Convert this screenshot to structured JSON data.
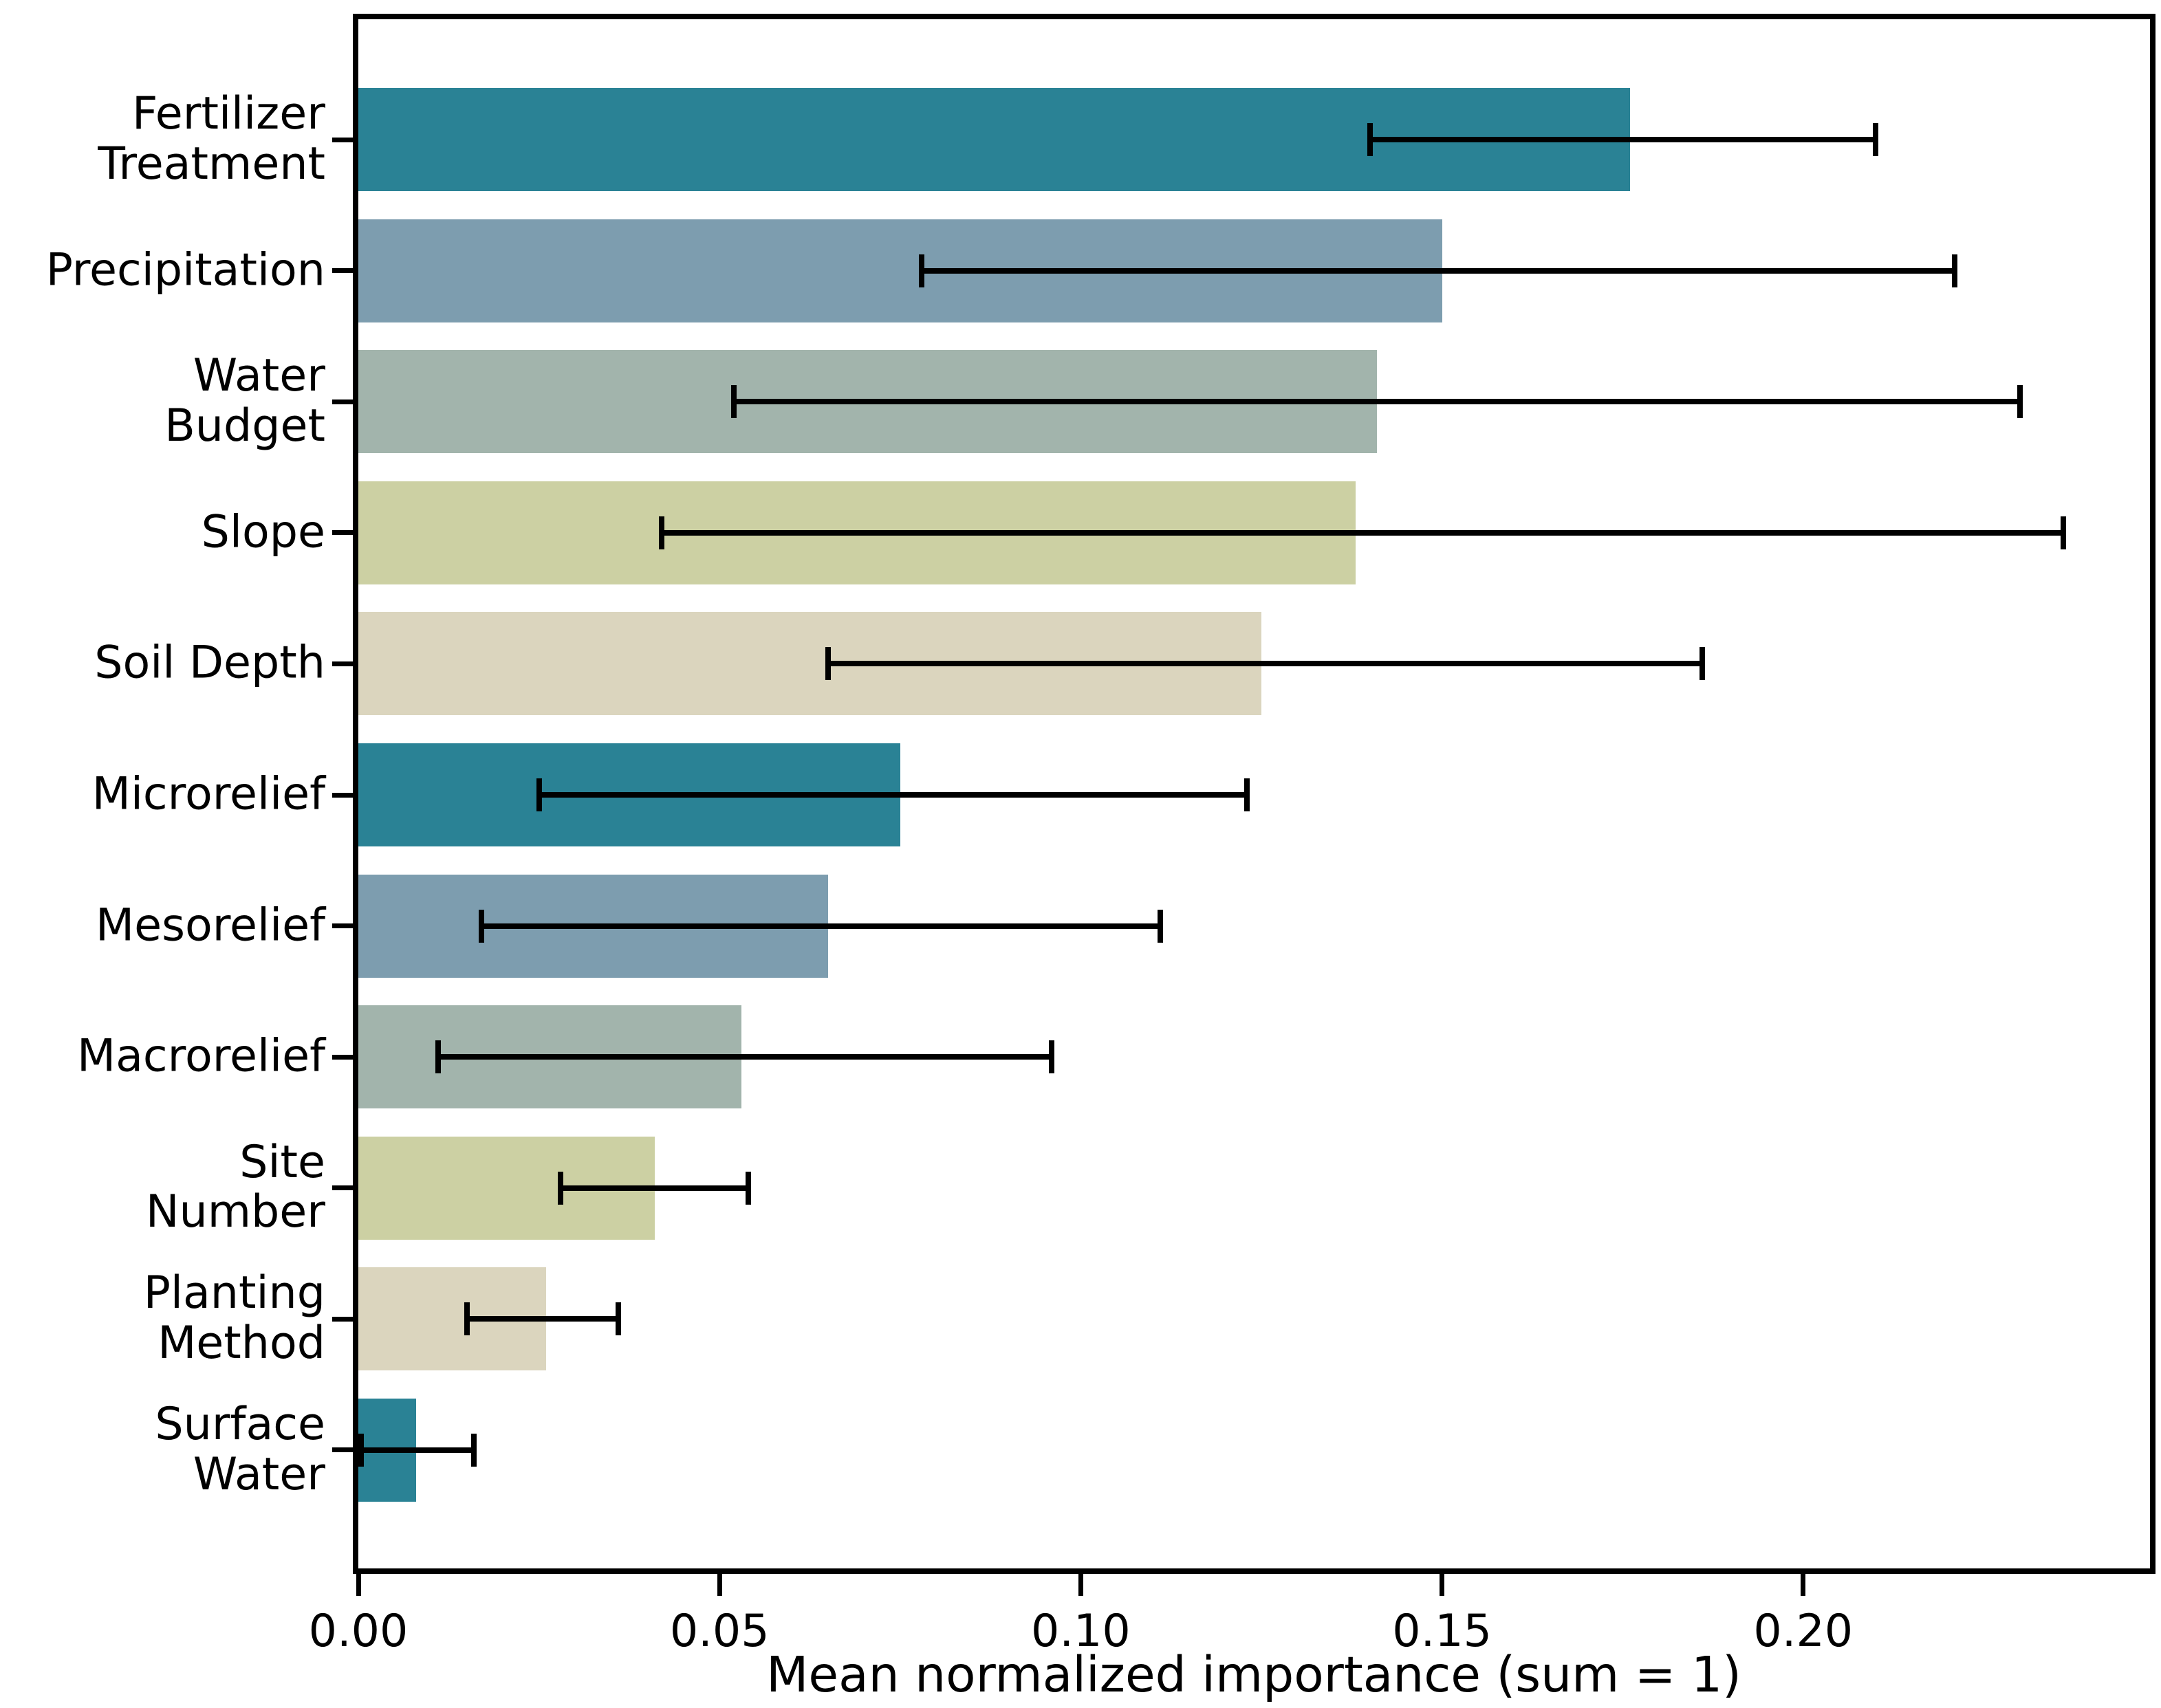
{
  "chart_data": {
    "type": "bar",
    "orientation": "horizontal",
    "title": "",
    "xlabel": "Mean normalized importance (sum = 1)",
    "ylabel": "",
    "categories": [
      "Fertilizer\nTreatment",
      "Precipitation",
      "Water\nBudget",
      "Slope",
      "Soil Depth",
      "Microrelief",
      "Mesorelief",
      "Macrorelief",
      "Site\nNumber",
      "Planting\nMethod",
      "Surface\nWater"
    ],
    "values": [
      0.176,
      0.15,
      0.141,
      0.138,
      0.125,
      0.075,
      0.065,
      0.053,
      0.041,
      0.026,
      0.008
    ],
    "error_low": [
      0.14,
      0.078,
      0.052,
      0.042,
      0.065,
      0.025,
      0.017,
      0.011,
      0.028,
      0.015,
      0.0004
    ],
    "error_high": [
      0.21,
      0.221,
      0.23,
      0.236,
      0.186,
      0.123,
      0.111,
      0.096,
      0.054,
      0.036,
      0.016
    ],
    "xticks": [
      0.0,
      0.05,
      0.1,
      0.15,
      0.2
    ],
    "xtick_labels": [
      "0.00",
      "0.05",
      "0.10",
      "0.15",
      "0.20"
    ],
    "xlim": [
      0,
      0.248
    ],
    "legend": null,
    "grid": false,
    "palette": [
      "#2A8295",
      "#7D9DAF",
      "#A2B4AC",
      "#CCD0A3",
      "#DBD5BE"
    ],
    "error_bar_color": "#000000",
    "spine_color": "#000000",
    "background_color": "#FFFFFF"
  }
}
